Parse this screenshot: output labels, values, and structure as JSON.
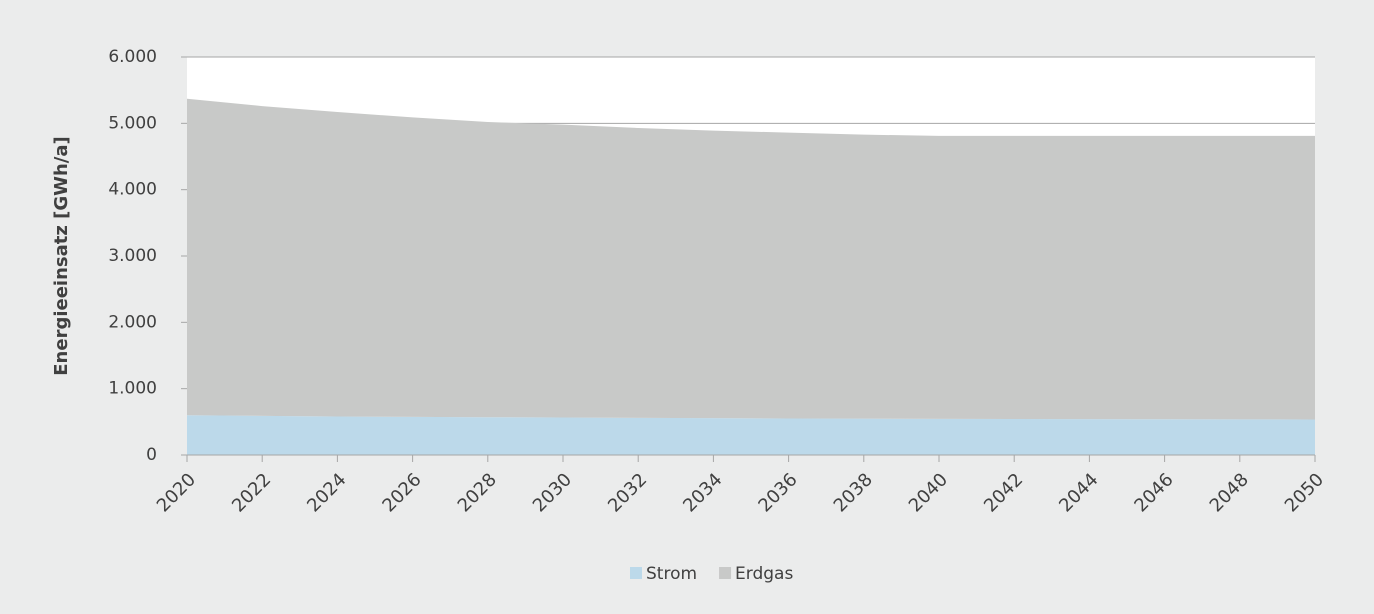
{
  "chart_data": {
    "type": "stacked_area",
    "ylabel": "Energieeinsatz [GWh/a]",
    "x": [
      2020,
      2022,
      2024,
      2026,
      2028,
      2030,
      2032,
      2034,
      2036,
      2038,
      2040,
      2042,
      2044,
      2046,
      2048,
      2050
    ],
    "series": [
      {
        "name": "Strom",
        "color": "#bcd9ea",
        "values": [
          600,
          590,
          580,
          575,
          570,
          565,
          560,
          555,
          550,
          548,
          545,
          543,
          541,
          539,
          537,
          535
        ]
      },
      {
        "name": "Erdgas",
        "color": "#c8c9c8",
        "values": [
          4770,
          4670,
          4590,
          4515,
          4450,
          4415,
          4370,
          4335,
          4310,
          4282,
          4265,
          4267,
          4269,
          4271,
          4273,
          4275
        ]
      }
    ],
    "xlim": [
      2020,
      2050
    ],
    "xticks": [
      2020,
      2022,
      2024,
      2026,
      2028,
      2030,
      2032,
      2034,
      2036,
      2038,
      2040,
      2042,
      2044,
      2046,
      2048,
      2050
    ],
    "ylim": [
      0,
      6000
    ],
    "yticks": [
      0,
      {
        "value": 1000,
        "label": "1.000"
      },
      {
        "value": 2000,
        "label": "2.000"
      },
      {
        "value": 3000,
        "label": "3.000"
      },
      {
        "value": 4000,
        "label": "4.000"
      },
      {
        "value": 5000,
        "label": "5.000"
      },
      {
        "value": 6000,
        "label": "6.000"
      }
    ],
    "grid": true,
    "legend": "bottom"
  }
}
